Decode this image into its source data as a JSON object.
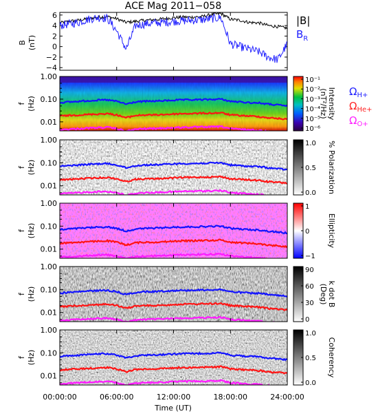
{
  "title": "ACE Mag 2011−058",
  "x_axis": {
    "label": "Time (UT)",
    "ticks": [
      "00:00:00",
      "06:00:00",
      "12:00:00",
      "18:00:00",
      "24:00:00"
    ],
    "range_hours": [
      0,
      24
    ]
  },
  "freq_axis": {
    "label_top": "f",
    "label_bottom": "(Hz)",
    "ticks": [
      "1.00",
      "0.10",
      "0.01"
    ],
    "tick_values": [
      1.0,
      0.1,
      0.01
    ],
    "range_hz": [
      0.004,
      1.0
    ],
    "scale": "log"
  },
  "field_panel": {
    "ylabel_top": "B",
    "ylabel_bottom": "(nT)",
    "legend_b": "|B|",
    "legend_br": "B",
    "legend_br_sub": "R",
    "colors": {
      "b": "#000000",
      "br": "#1f1fff"
    }
  },
  "gyro_legend": [
    {
      "symbol": "Ω",
      "sub": "H+",
      "color": "#2222ff"
    },
    {
      "symbol": "Ω",
      "sub": "He+",
      "color": "#ff2222"
    },
    {
      "symbol": "Ω",
      "sub": "O+",
      "color": "#ff22ff"
    }
  ],
  "colorbars": [
    {
      "id": "intensity",
      "label": "Intensity",
      "label2": "(nT²/Hz)",
      "ticks": [
        "10⁻¹",
        "10⁻²",
        "10⁻³",
        "10⁻⁴",
        "10⁻⁵",
        "10⁻⁶"
      ],
      "cmap": "rainbow"
    },
    {
      "id": "polarization",
      "label": "% Polarization",
      "label2": "",
      "ticks": [
        "1.0",
        "0.5",
        "0.0"
      ],
      "cmap": "gray_rev"
    },
    {
      "id": "ellipticity",
      "label": "Ellipticity",
      "label2": "",
      "ticks": [
        "1",
        "0",
        "−1"
      ],
      "cmap": "bwr"
    },
    {
      "id": "kdotb",
      "label": "k dot B",
      "label2": "(Deg)",
      "ticks": [
        "90",
        "60",
        "30",
        "0"
      ],
      "cmap": "gray_rev"
    },
    {
      "id": "coherency",
      "label": "Coherency",
      "label2": "",
      "ticks": [
        "1.0",
        "0.5",
        "0.0"
      ],
      "cmap": "gray_rev"
    }
  ],
  "chart_data": {
    "type": "heatmap",
    "title": "ACE Mag 2011−058",
    "xlabel": "Time (UT)",
    "x_hours": [
      0,
      1,
      2,
      3,
      4,
      5,
      6,
      7,
      8,
      9,
      10,
      11,
      12,
      13,
      14,
      15,
      16,
      17,
      18,
      19,
      20,
      21,
      22,
      23,
      24
    ],
    "field_series": [
      {
        "name": "|B|",
        "values": [
          4.5,
          4.8,
          5.0,
          5.3,
          5.6,
          5.7,
          5.3,
          4.6,
          4.8,
          5.0,
          5.1,
          5.3,
          5.5,
          5.6,
          5.6,
          5.7,
          6.1,
          6.3,
          5.2,
          5.0,
          4.6,
          4.5,
          4.0,
          3.8,
          3.5
        ],
        "ylim": [
          -4.5,
          6.5
        ]
      },
      {
        "name": "B_R",
        "values": [
          4.0,
          4.3,
          4.6,
          5.2,
          5.5,
          5.4,
          3.0,
          -0.5,
          4.0,
          4.3,
          4.5,
          4.6,
          4.8,
          4.9,
          5.0,
          5.1,
          5.3,
          5.5,
          0.5,
          0.0,
          -0.5,
          -1.0,
          -2.0,
          -2.5,
          0.5
        ],
        "ylim": [
          -4.5,
          6.5
        ]
      }
    ],
    "gyrofrequency_series_hz": [
      {
        "name": "ΩH+",
        "values": [
          0.07,
          0.075,
          0.08,
          0.085,
          0.09,
          0.092,
          0.08,
          0.06,
          0.075,
          0.08,
          0.082,
          0.085,
          0.09,
          0.092,
          0.093,
          0.095,
          0.097,
          0.1,
          0.08,
          0.075,
          0.07,
          0.068,
          0.06,
          0.055,
          0.05
        ]
      },
      {
        "name": "ΩHe+",
        "values": [
          0.018,
          0.019,
          0.02,
          0.021,
          0.022,
          0.023,
          0.02,
          0.015,
          0.019,
          0.02,
          0.02,
          0.021,
          0.022,
          0.023,
          0.023,
          0.024,
          0.024,
          0.025,
          0.02,
          0.019,
          0.018,
          0.017,
          0.015,
          0.014,
          0.013
        ]
      },
      {
        "name": "ΩO+",
        "values": [
          0.0045,
          0.0047,
          0.005,
          0.0053,
          0.0055,
          0.0057,
          0.005,
          0.0038,
          0.0047,
          0.005,
          0.0051,
          0.0053,
          0.0055,
          0.0057,
          0.0058,
          0.0059,
          0.006,
          0.0062,
          0.005,
          0.0047,
          0.0044,
          0.0042,
          0.0038,
          0.0035,
          0.0033
        ]
      }
    ]
  }
}
